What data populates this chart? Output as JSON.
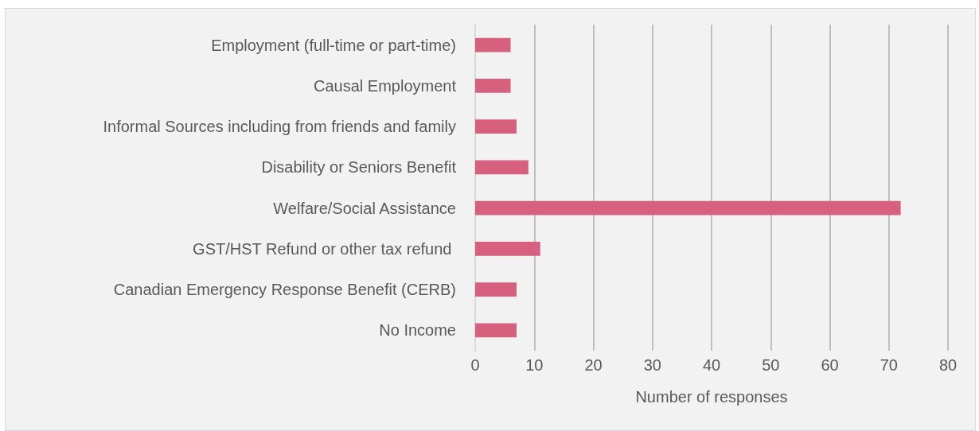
{
  "chart_data": {
    "type": "bar",
    "orientation": "horizontal",
    "xlabel": "Number of responses",
    "categories": [
      "Employment (full-time or part-time)",
      "Causal Employment",
      "Informal Sources including from friends and family",
      "Disability or Seniors Benefit",
      "Welfare/Social Assistance",
      "GST/HST Refund or other tax refund ",
      "Canadian Emergency Response Benefit (CERB)",
      "No Income"
    ],
    "values": [
      6,
      6,
      7,
      9,
      72,
      11,
      7,
      7
    ],
    "color": "#d6607d",
    "xlim": [
      0,
      80
    ],
    "xticks": [
      0,
      10,
      20,
      30,
      40,
      50,
      60,
      70,
      80
    ],
    "grid": "x"
  }
}
